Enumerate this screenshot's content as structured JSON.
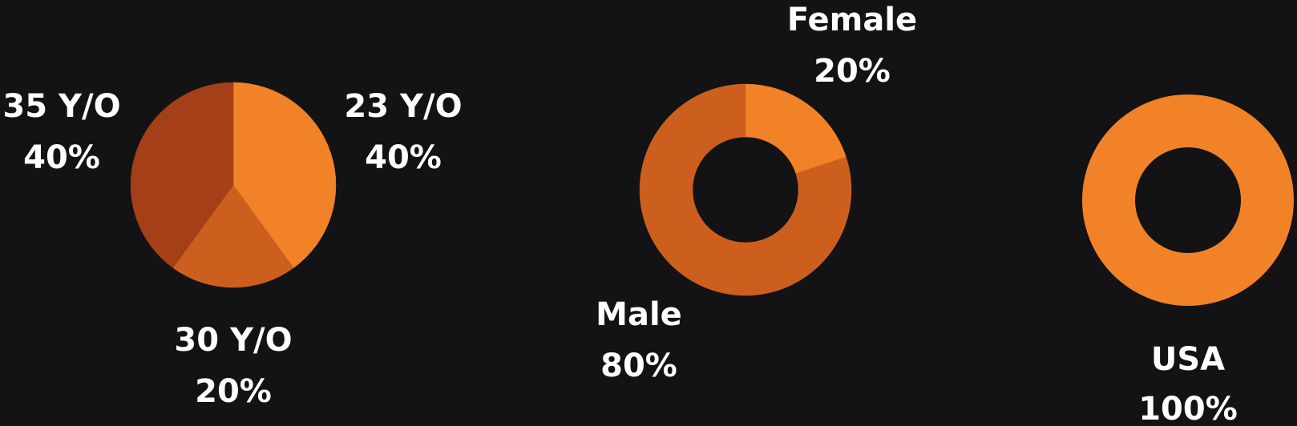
{
  "background": "#131214",
  "chart_data": [
    {
      "type": "pie",
      "slices": [
        {
          "label": "23 Y/O",
          "pct_label": "40%",
          "value": 40,
          "color": "#f28227"
        },
        {
          "label": "30 Y/O",
          "pct_label": "20%",
          "value": 20,
          "color": "#cd5f1e"
        },
        {
          "label": "35 Y/O",
          "pct_label": "40%",
          "value": 40,
          "color": "#a43f17"
        }
      ]
    },
    {
      "type": "pie",
      "donut": true,
      "slices": [
        {
          "label": "Female",
          "pct_label": "20%",
          "value": 20,
          "color": "#f28227"
        },
        {
          "label": "Male",
          "pct_label": "80%",
          "value": 80,
          "color": "#cd5f1e"
        }
      ]
    },
    {
      "type": "pie",
      "donut": true,
      "slices": [
        {
          "label": "USA",
          "pct_label": "100%",
          "value": 100,
          "color": "#f28227"
        }
      ]
    }
  ]
}
